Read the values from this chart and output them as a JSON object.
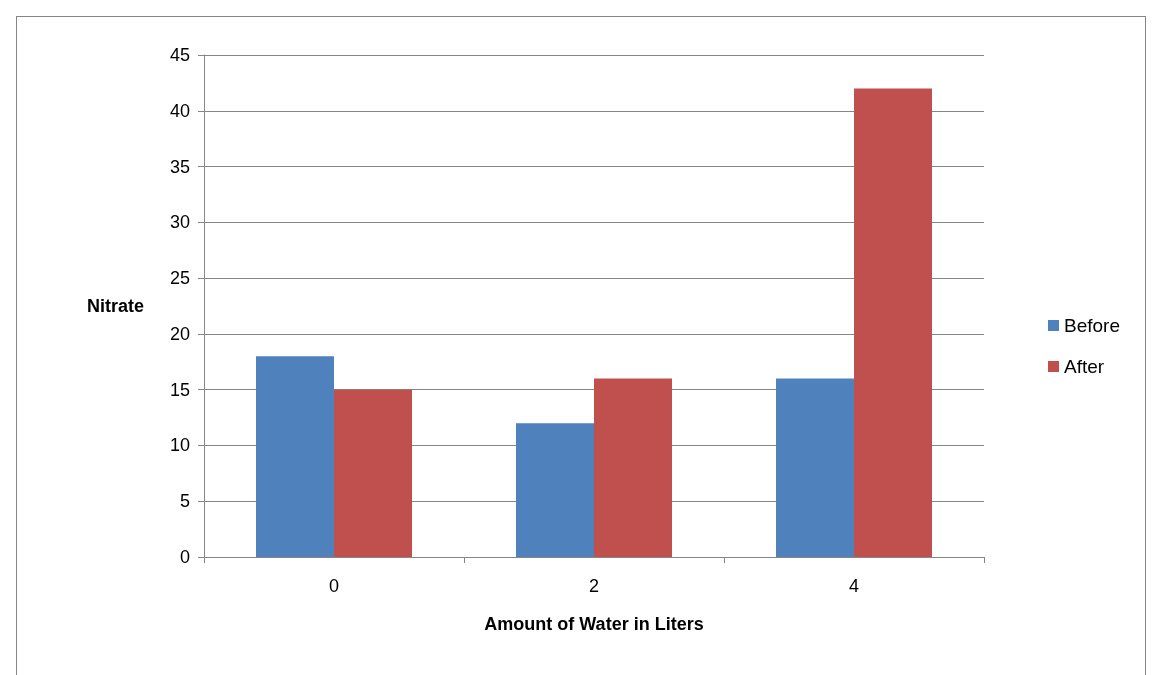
{
  "chart_data": {
    "type": "bar",
    "xlabel": "Amount of Water in Liters",
    "ylabel": "Nitrate",
    "categories": [
      "0",
      "2",
      "4"
    ],
    "series": [
      {
        "name": "Before",
        "color": "#4f81bd",
        "values": [
          18,
          12,
          16
        ]
      },
      {
        "name": "After",
        "color": "#c0504d",
        "values": [
          15,
          16,
          42
        ]
      }
    ],
    "ylim": [
      0,
      45
    ],
    "yticks": [
      0,
      5,
      10,
      15,
      20,
      25,
      30,
      35,
      40,
      45
    ],
    "grid": "y",
    "legend": "right"
  }
}
